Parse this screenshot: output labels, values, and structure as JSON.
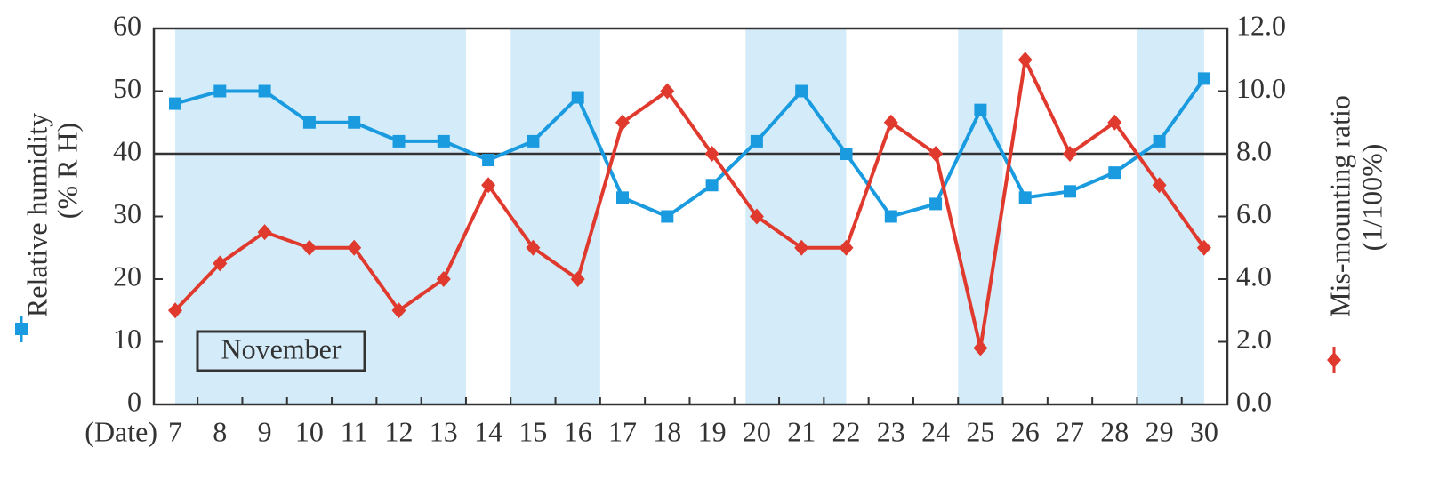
{
  "chart_data": {
    "type": "line",
    "annotation": "November",
    "x_label": "(Date)",
    "y_label": [
      "Relative humidity",
      "(% R H)"
    ],
    "y2_label": [
      "Mis-mounting ratio",
      "(1/100%)"
    ],
    "categories": [
      "7",
      "8",
      "9",
      "10",
      "11",
      "12",
      "13",
      "14",
      "15",
      "16",
      "17",
      "18",
      "19",
      "20",
      "21",
      "22",
      "23",
      "24",
      "25",
      "26",
      "27",
      "28",
      "29",
      "30"
    ],
    "series": [
      {
        "name": "Relative humidity",
        "color": "#1a9be0",
        "marker": "square",
        "values": [
          48,
          50,
          50,
          45,
          45,
          42,
          42,
          39,
          42,
          49,
          33,
          30,
          35,
          42,
          50,
          40,
          30,
          32,
          47,
          33,
          34,
          37,
          42,
          52
        ]
      },
      {
        "name": "Mis-mounting ratio",
        "color": "#e03a2e",
        "marker": "diamond",
        "axis": "y2",
        "values": [
          3.0,
          4.5,
          5.5,
          5.0,
          5.0,
          3.0,
          4.0,
          7.0,
          5.0,
          4.0,
          9.0,
          10.0,
          8.0,
          6.0,
          5.0,
          5.0,
          9.0,
          8.0,
          1.8,
          11.0,
          8.0,
          9.0,
          7.0,
          5.0
        ]
      }
    ],
    "shaded_color": "#d4ecf9",
    "shaded_ranges": [
      [
        0,
        6.5
      ],
      [
        7.5,
        9.5
      ],
      [
        12.75,
        15
      ],
      [
        17.5,
        18.5
      ],
      [
        21.5,
        23
      ]
    ],
    "hline": 40,
    "ylim": [
      0,
      60
    ],
    "yticks": [
      0,
      10,
      20,
      30,
      40,
      50,
      60
    ],
    "y2lim": [
      0,
      12
    ],
    "y2ticks": [
      {
        "value": 0,
        "label": "0.0"
      },
      {
        "value": 2,
        "label": "2.0"
      },
      {
        "value": 4,
        "label": "4.0"
      },
      {
        "value": 6,
        "label": "6.0"
      },
      {
        "value": 8,
        "label": "8.0"
      },
      {
        "value": 10,
        "label": "10.0"
      },
      {
        "value": 12,
        "label": "12.0"
      }
    ]
  }
}
